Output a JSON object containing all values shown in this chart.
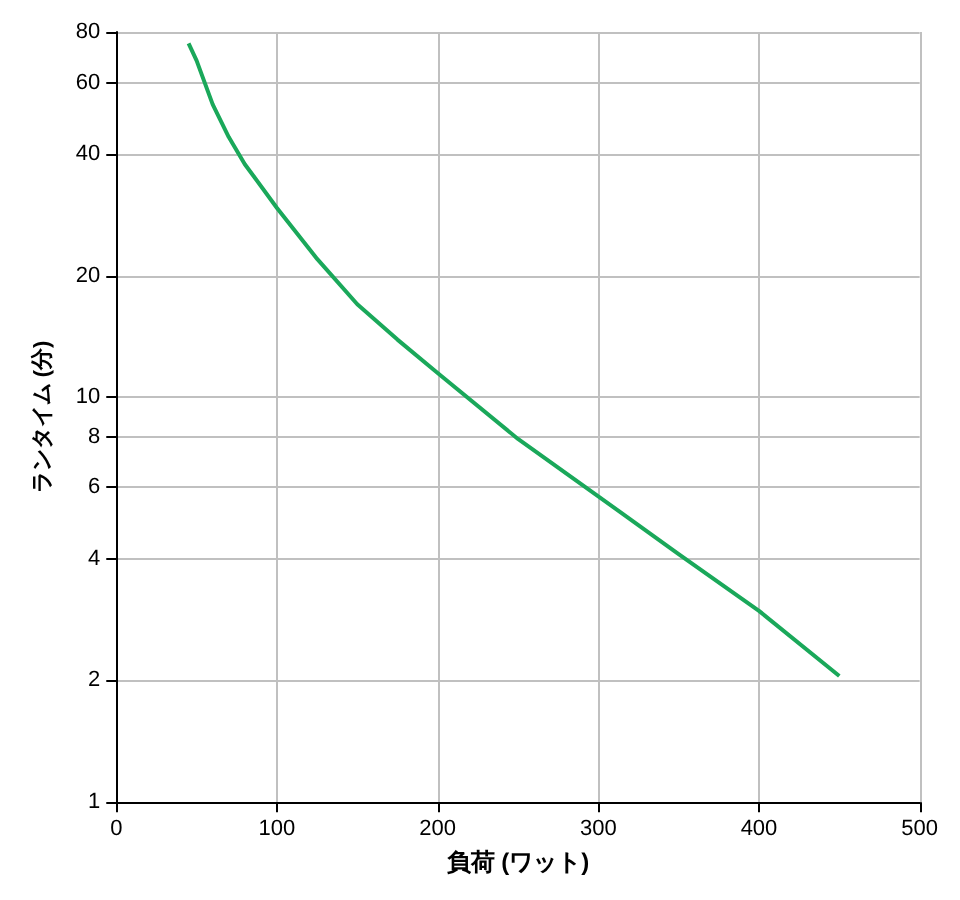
{
  "chart_data": {
    "type": "line",
    "xlabel": "負荷 (ワット)",
    "ylabel": "ランタイム (分)",
    "x": [
      45,
      50,
      60,
      70,
      80,
      100,
      125,
      150,
      175,
      200,
      250,
      300,
      350,
      400,
      450
    ],
    "series": [
      {
        "color": "#1aa85a",
        "values": [
          75,
          68,
          53,
          44,
          37.7,
          29.4,
          22,
          17,
          13.9,
          11.5,
          7.9,
          5.7,
          4.1,
          2.97,
          2.05
        ]
      }
    ],
    "xlim": [
      0,
      500
    ],
    "xticks": [
      0,
      100,
      200,
      300,
      400,
      500
    ],
    "ylim": [
      1,
      80
    ],
    "yticks": [
      1,
      2,
      4,
      6,
      8,
      10,
      20,
      40,
      60,
      80
    ],
    "log": "y",
    "grid": true,
    "marker": "none",
    "line_style": "solid"
  }
}
